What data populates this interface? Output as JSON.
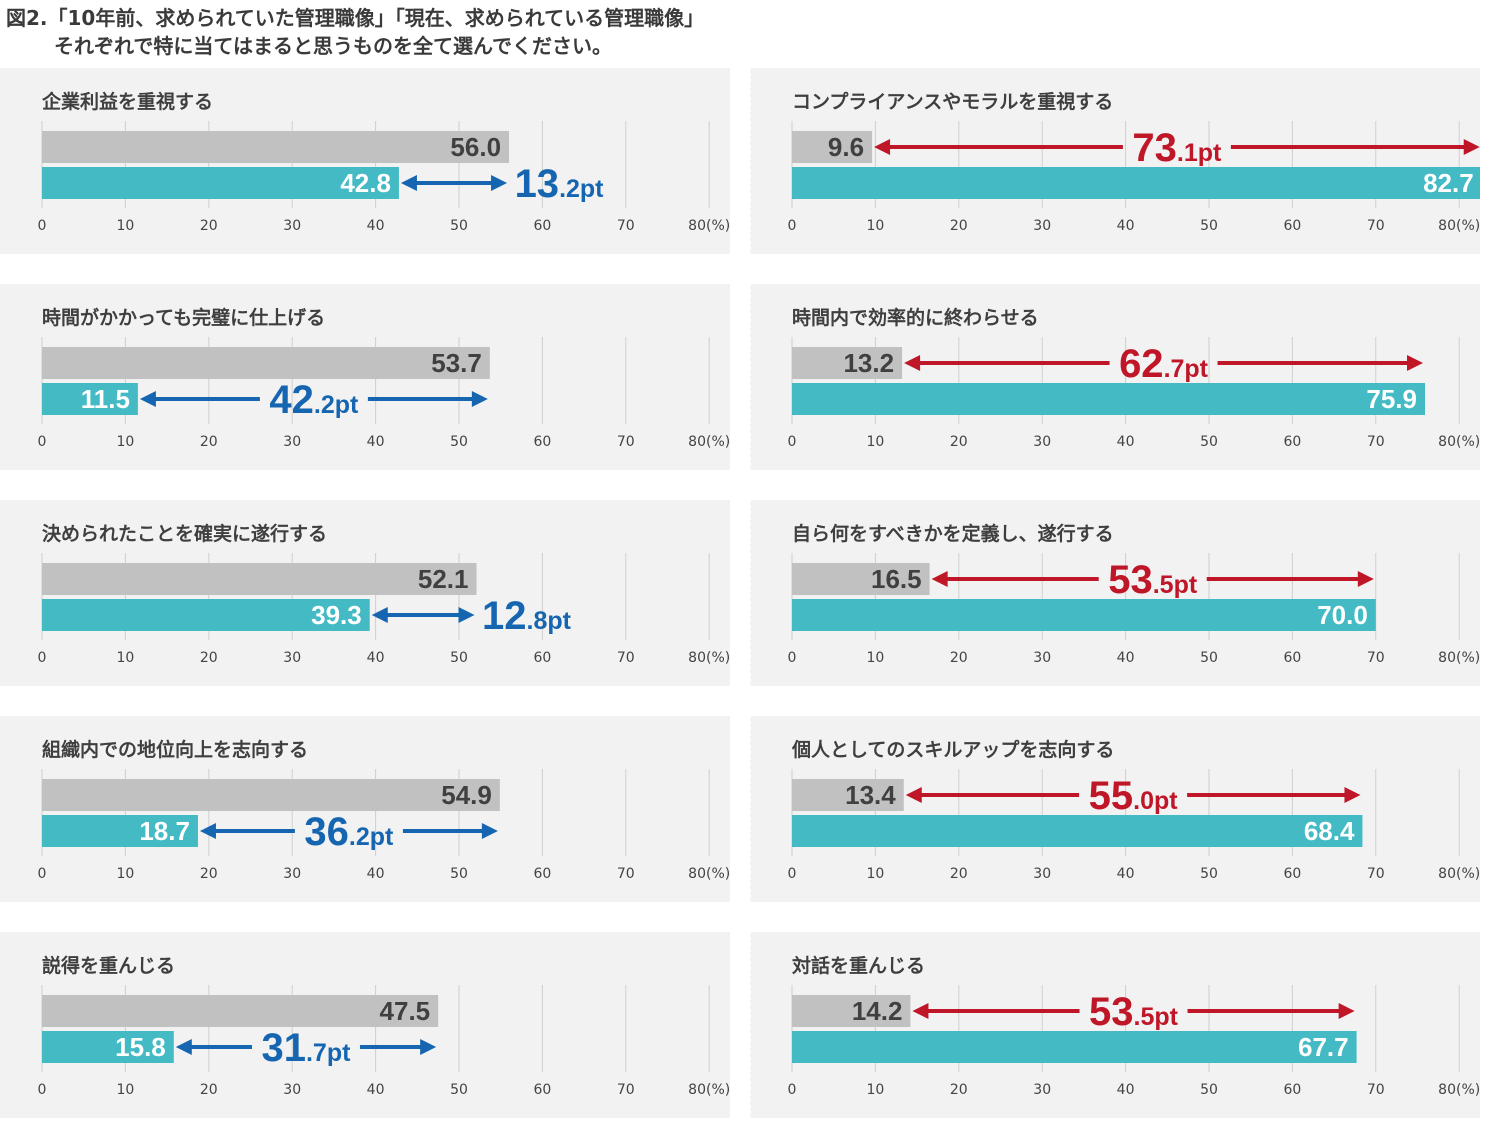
{
  "title": {
    "line1": "図2.「10年前、求められていた管理職像」「現在、求められている管理職像」",
    "line2": "それぞれで特に当てはまると思うものを全て選んでください。"
  },
  "colors": {
    "past_bar": "#c1c1c1",
    "now_bar": "#44bac5",
    "diff_blue": "#1565b0",
    "diff_red": "#bf1628",
    "panel_bg": "#f2f2f2",
    "grid": "#cfcfcf"
  },
  "chart_data": [
    {
      "type": "bar",
      "title": "企業利益を重視する",
      "values": [
        56.0,
        42.8
      ],
      "value_labels": [
        "56.0",
        "42.8"
      ],
      "diff_int": "13",
      "diff_dec": ".2pt",
      "diff_color": "blue",
      "x_ticks": [
        "0",
        "10",
        "20",
        "30",
        "40",
        "50",
        "60",
        "70",
        "80(%)"
      ],
      "xlim": [
        0,
        80
      ]
    },
    {
      "type": "bar",
      "title": "コンプライアンスやモラルを重視する",
      "values": [
        9.6,
        82.7
      ],
      "value_labels": [
        "9.6",
        "82.7"
      ],
      "diff_int": "73",
      "diff_dec": ".1pt",
      "diff_color": "red",
      "x_ticks": [
        "0",
        "10",
        "20",
        "30",
        "40",
        "50",
        "60",
        "70",
        "80(%)"
      ],
      "xlim": [
        0,
        80
      ]
    },
    {
      "type": "bar",
      "title": "時間がかかっても完璧に仕上げる",
      "values": [
        53.7,
        11.5
      ],
      "value_labels": [
        "53.7",
        "11.5"
      ],
      "diff_int": "42",
      "diff_dec": ".2pt",
      "diff_color": "blue",
      "x_ticks": [
        "0",
        "10",
        "20",
        "30",
        "40",
        "50",
        "60",
        "70",
        "80(%)"
      ],
      "xlim": [
        0,
        80
      ]
    },
    {
      "type": "bar",
      "title": "時間内で効率的に終わらせる",
      "values": [
        13.2,
        75.9
      ],
      "value_labels": [
        "13.2",
        "75.9"
      ],
      "diff_int": "62",
      "diff_dec": ".7pt",
      "diff_color": "red",
      "x_ticks": [
        "0",
        "10",
        "20",
        "30",
        "40",
        "50",
        "60",
        "70",
        "80(%)"
      ],
      "xlim": [
        0,
        80
      ]
    },
    {
      "type": "bar",
      "title": "決められたことを確実に遂行する",
      "values": [
        52.1,
        39.3
      ],
      "value_labels": [
        "52.1",
        "39.3"
      ],
      "diff_int": "12",
      "diff_dec": ".8pt",
      "diff_color": "blue",
      "x_ticks": [
        "0",
        "10",
        "20",
        "30",
        "40",
        "50",
        "60",
        "70",
        "80(%)"
      ],
      "xlim": [
        0,
        80
      ]
    },
    {
      "type": "bar",
      "title": "自ら何をすべきかを定義し、遂行する",
      "values": [
        16.5,
        70.0
      ],
      "value_labels": [
        "16.5",
        "70.0"
      ],
      "diff_int": "53",
      "diff_dec": ".5pt",
      "diff_color": "red",
      "x_ticks": [
        "0",
        "10",
        "20",
        "30",
        "40",
        "50",
        "60",
        "70",
        "80(%)"
      ],
      "xlim": [
        0,
        80
      ]
    },
    {
      "type": "bar",
      "title": "組織内での地位向上を志向する",
      "values": [
        54.9,
        18.7
      ],
      "value_labels": [
        "54.9",
        "18.7"
      ],
      "diff_int": "36",
      "diff_dec": ".2pt",
      "diff_color": "blue",
      "x_ticks": [
        "0",
        "10",
        "20",
        "30",
        "40",
        "50",
        "60",
        "70",
        "80(%)"
      ],
      "xlim": [
        0,
        80
      ]
    },
    {
      "type": "bar",
      "title": "個人としてのスキルアップを志向する",
      "values": [
        13.4,
        68.4
      ],
      "value_labels": [
        "13.4",
        "68.4"
      ],
      "diff_int": "55",
      "diff_dec": ".0pt",
      "diff_color": "red",
      "x_ticks": [
        "0",
        "10",
        "20",
        "30",
        "40",
        "50",
        "60",
        "70",
        "80(%)"
      ],
      "xlim": [
        0,
        80
      ]
    },
    {
      "type": "bar",
      "title": "説得を重んじる",
      "values": [
        47.5,
        15.8
      ],
      "value_labels": [
        "47.5",
        "15.8"
      ],
      "diff_int": "31",
      "diff_dec": ".7pt",
      "diff_color": "blue",
      "x_ticks": [
        "0",
        "10",
        "20",
        "30",
        "40",
        "50",
        "60",
        "70",
        "80(%)"
      ],
      "xlim": [
        0,
        80
      ]
    },
    {
      "type": "bar",
      "title": "対話を重んじる",
      "values": [
        14.2,
        67.7
      ],
      "value_labels": [
        "14.2",
        "67.7"
      ],
      "diff_int": "53",
      "diff_dec": ".5pt",
      "diff_color": "red",
      "x_ticks": [
        "0",
        "10",
        "20",
        "30",
        "40",
        "50",
        "60",
        "70",
        "80(%)"
      ],
      "xlim": [
        0,
        80
      ]
    }
  ]
}
